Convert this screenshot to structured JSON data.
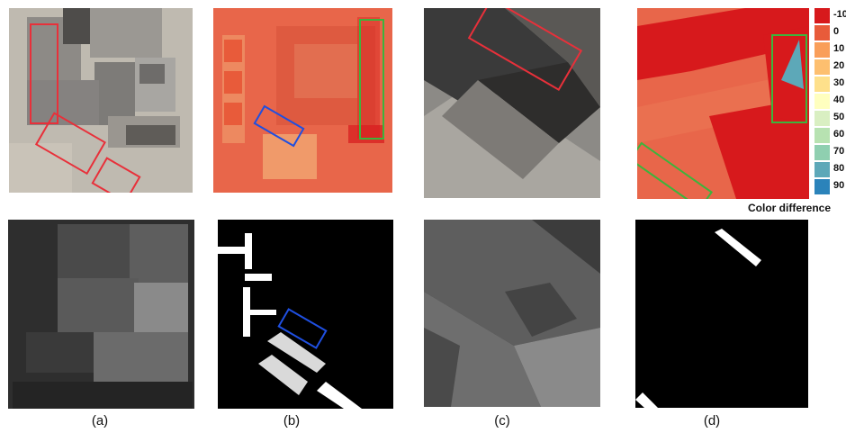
{
  "captions": [
    "(a)",
    "(b)",
    "(c)",
    "(d)"
  ],
  "legend": {
    "title": "Color difference",
    "items": [
      {
        "label": "-10",
        "color": "#d7191c"
      },
      {
        "label": "0",
        "color": "#e85b3a"
      },
      {
        "label": "10",
        "color": "#f99e59"
      },
      {
        "label": "20",
        "color": "#fdbf6f"
      },
      {
        "label": "30",
        "color": "#fee08b"
      },
      {
        "label": "40",
        "color": "#ffffbf"
      },
      {
        "label": "50",
        "color": "#d9efc2"
      },
      {
        "label": "60",
        "color": "#b7e2b1"
      },
      {
        "label": "70",
        "color": "#8fcfb0"
      },
      {
        "label": "80",
        "color": "#5da8b8"
      },
      {
        "label": "90",
        "color": "#2b83ba"
      }
    ]
  },
  "colors": {
    "highlight_red": "#e8303a",
    "highlight_blue": "#1f4fe0",
    "highlight_green": "#3cb43c"
  }
}
